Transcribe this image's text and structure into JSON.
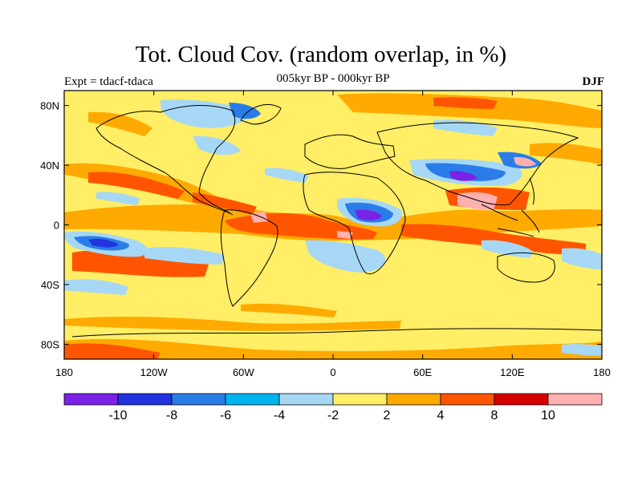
{
  "header": {
    "title": "Tot. Cloud Cov. (random overlap, in %)",
    "subtitle": "005kyr BP - 000kyr BP",
    "left_label": "Expt = tdacf-tdaca",
    "right_label": "DJF"
  },
  "map": {
    "lat_ticks": [
      "80N",
      "40N",
      "0",
      "40S",
      "80S"
    ],
    "lon_ticks": [
      "180",
      "120W",
      "60W",
      "0",
      "60E",
      "120E",
      "180"
    ]
  },
  "colorbar": {
    "colors": [
      "#7a22e6",
      "#2233e0",
      "#2a7de8",
      "#00b4f0",
      "#a6d8f5",
      "#ffee66",
      "#ffaa00",
      "#ff5500",
      "#d60000",
      "#ffb0b0"
    ],
    "labels": [
      "-10",
      "-8",
      "-6",
      "-4",
      "-2",
      "2",
      "4",
      "8",
      "10"
    ]
  }
}
